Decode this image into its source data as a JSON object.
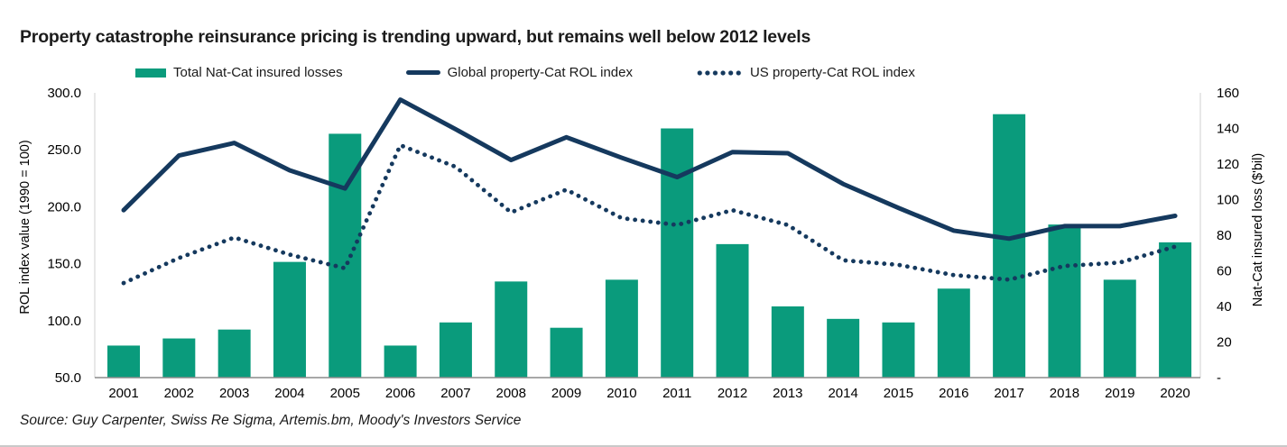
{
  "page": {
    "title": "Property catastrophe reinsurance pricing is trending upward, but remains well below 2012 levels",
    "source": "Source: Guy Carpenter, Swiss Re Sigma, Artemis.bm, Moody's Investors Service"
  },
  "colors": {
    "bar": "#0a9b7c",
    "line": "#15395e",
    "plot_side_border": "#d9d9d9",
    "x_axis_line": "#8c8c8c",
    "text": "#1a1a1a"
  },
  "legend": {
    "items": [
      {
        "label": "Total Nat-Cat insured losses",
        "marker": "bar-swatch"
      },
      {
        "label": "Global property-Cat ROL index",
        "marker": "solid-line-swatch"
      },
      {
        "label": "US property-Cat ROL index",
        "marker": "dotted-line-swatch"
      }
    ]
  },
  "chart_data": {
    "type": "bar",
    "subtype": "combo-bar-with-two-lines",
    "categories": [
      "2001",
      "2002",
      "2003",
      "2004",
      "2005",
      "2006",
      "2007",
      "2008",
      "2009",
      "2010",
      "2011",
      "2012",
      "2013",
      "2014",
      "2015",
      "2016",
      "2017",
      "2018",
      "2019",
      "2020"
    ],
    "series": [
      {
        "name": "Total Nat-Cat insured losses",
        "type": "bar",
        "axis": "right",
        "values": [
          18,
          22,
          27,
          65,
          137,
          18,
          31,
          54,
          28,
          55,
          140,
          75,
          40,
          33,
          31,
          50,
          148,
          86,
          55,
          76
        ]
      },
      {
        "name": "Global property-Cat ROL index",
        "type": "line",
        "line_style": "solid",
        "axis": "left",
        "values": [
          197,
          245,
          256,
          232,
          216,
          294,
          268,
          241,
          261,
          243,
          226,
          248,
          247,
          220,
          199,
          179,
          172,
          183,
          183,
          192
        ]
      },
      {
        "name": "US property-Cat ROL index",
        "type": "line",
        "line_style": "dotted",
        "axis": "left",
        "values": [
          133,
          155,
          173,
          158,
          146,
          254,
          235,
          195,
          215,
          190,
          184,
          197,
          184,
          153,
          149,
          140,
          136,
          148,
          151,
          165
        ]
      }
    ],
    "left_axis": {
      "label": "ROL index value (1990 = 100)",
      "min": 50,
      "max": 300,
      "tick_step": 50,
      "tick_values": [
        300,
        250,
        200,
        150,
        100,
        50
      ],
      "tick_labels": [
        "300.0",
        "250.0",
        "200.0",
        "150.0",
        "100.0",
        "50.0"
      ]
    },
    "right_axis": {
      "label": "Nat-Cat insured loss ($'bil)",
      "min": 0,
      "max": 160,
      "tick_step": 20,
      "tick_values": [
        160,
        140,
        120,
        100,
        80,
        60,
        40,
        20,
        0
      ],
      "tick_labels": [
        "160",
        "140",
        "120",
        "100",
        "80",
        "60",
        "40",
        "20",
        "-"
      ]
    },
    "grid": false,
    "legend_position": "top"
  }
}
